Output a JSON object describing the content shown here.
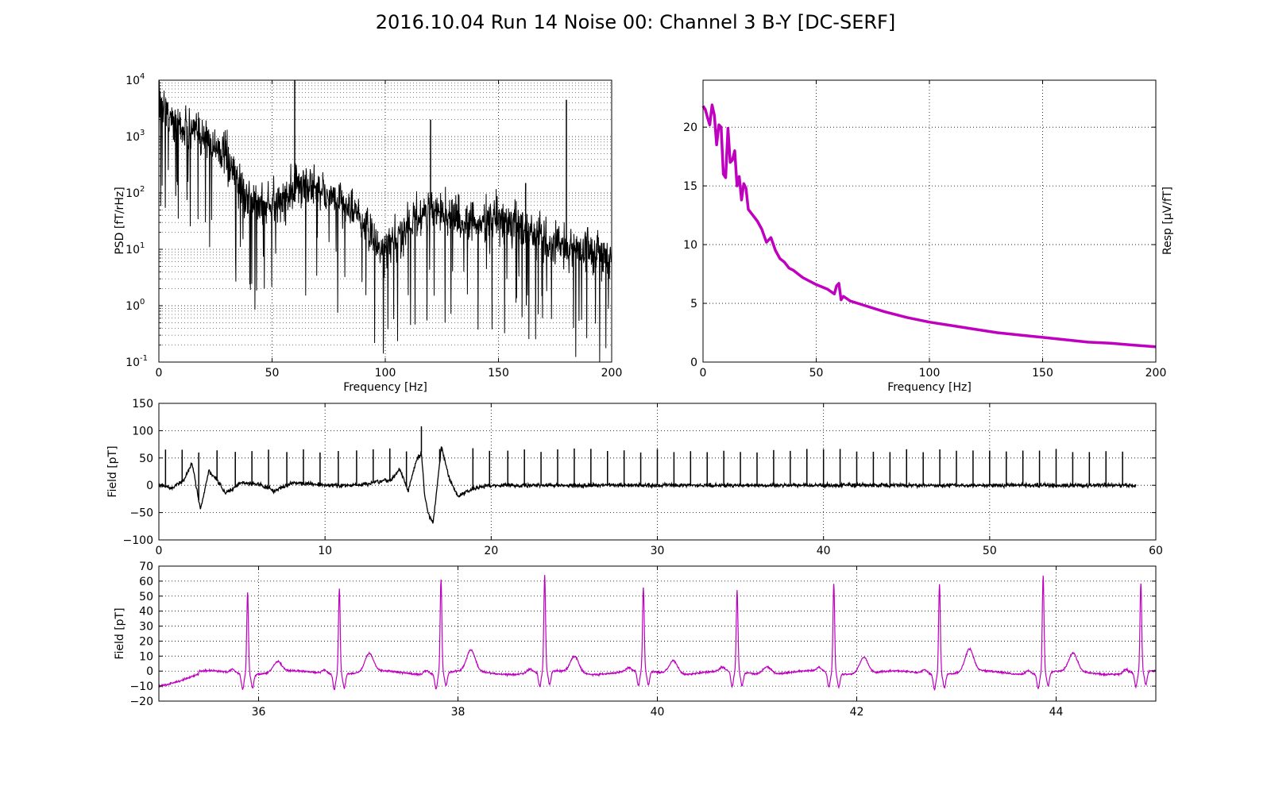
{
  "figure": {
    "title": "2016.10.04 Run 14 Noise 00: Channel 3 B-Y [DC-SERF]"
  },
  "colors": {
    "psd_line": "#000000",
    "response_line": "#bf00bf",
    "field_line": "#000000",
    "zoom_line": "#bf00bf"
  },
  "chart_data": [
    {
      "id": "psd",
      "type": "line",
      "title": "",
      "xlabel": "Frequency [Hz]",
      "ylabel": "PSD [fT/rHz]",
      "xlim": [
        0,
        200
      ],
      "ylim": [
        0.1,
        10000
      ],
      "yscale": "log",
      "grid": true,
      "xticks": [
        "0",
        "50",
        "100",
        "150",
        "200"
      ],
      "yticks": [
        {
          "base": "10",
          "exp": "-1"
        },
        {
          "base": "10",
          "exp": "0"
        },
        {
          "base": "10",
          "exp": "1"
        },
        {
          "base": "10",
          "exp": "2"
        },
        {
          "base": "10",
          "exp": "3"
        },
        {
          "base": "10",
          "exp": "4"
        }
      ],
      "series": [
        {
          "color": "#000000",
          "x": [
            0,
            2,
            5,
            10,
            15,
            20,
            25,
            30,
            35,
            40,
            45,
            50,
            55,
            60,
            65,
            70,
            75,
            80,
            85,
            90,
            95,
            100,
            105,
            110,
            115,
            120,
            125,
            130,
            135,
            140,
            145,
            150,
            155,
            160,
            165,
            170,
            175,
            180,
            185,
            190,
            195,
            200
          ],
          "y": [
            6000,
            3500,
            2000,
            1500,
            1200,
            1000,
            700,
            400,
            150,
            70,
            60,
            60,
            80,
            120,
            150,
            120,
            90,
            70,
            50,
            30,
            15,
            8,
            15,
            30,
            40,
            50,
            45,
            40,
            30,
            30,
            30,
            35,
            30,
            25,
            20,
            15,
            12,
            12,
            10,
            10,
            9,
            8
          ],
          "peaks": [
            {
              "x": 60,
              "y": 10000
            },
            {
              "x": 120,
              "y": 2000
            },
            {
              "x": 180,
              "y": 4500
            },
            {
              "x": 162,
              "y": 150
            }
          ]
        }
      ]
    },
    {
      "id": "response",
      "type": "line",
      "title": "",
      "xlabel": "Frequency [Hz]",
      "ylabel": "Resp [μV/fT]",
      "xlim": [
        0,
        200
      ],
      "ylim": [
        0,
        24
      ],
      "grid": true,
      "xticks": [
        "0",
        "50",
        "100",
        "150",
        "200"
      ],
      "yticks": [
        "0",
        "5",
        "10",
        "15",
        "20"
      ],
      "series": [
        {
          "color": "#bf00bf",
          "x": [
            0,
            1,
            2,
            3,
            4,
            5,
            6,
            7,
            8,
            9,
            10,
            11,
            12,
            13,
            14,
            15,
            16,
            17,
            18,
            19,
            20,
            22,
            24,
            26,
            28,
            30,
            32,
            34,
            36,
            38,
            40,
            42,
            44,
            46,
            48,
            50,
            55,
            58,
            59,
            60,
            61,
            62,
            65,
            70,
            75,
            80,
            90,
            100,
            110,
            120,
            130,
            140,
            150,
            160,
            170,
            180,
            190,
            200
          ],
          "y": [
            21.8,
            21.5,
            20.8,
            20.2,
            21.9,
            21.0,
            18.5,
            20.2,
            20.0,
            16.0,
            15.7,
            19.9,
            17.0,
            17.2,
            18.0,
            15.0,
            15.8,
            13.8,
            15.2,
            14.8,
            13.0,
            12.5,
            12.0,
            11.3,
            10.2,
            10.6,
            9.5,
            8.8,
            8.5,
            8.0,
            7.8,
            7.5,
            7.2,
            7.0,
            6.8,
            6.6,
            6.2,
            5.8,
            6.5,
            6.7,
            5.3,
            5.6,
            5.2,
            4.9,
            4.6,
            4.3,
            3.8,
            3.4,
            3.1,
            2.8,
            2.5,
            2.3,
            2.1,
            1.9,
            1.7,
            1.6,
            1.45,
            1.3
          ]
        }
      ]
    },
    {
      "id": "field_full",
      "type": "line",
      "title": "",
      "xlabel": "",
      "ylabel": "Field [pT]",
      "xlim": [
        0,
        60
      ],
      "ylim": [
        -100,
        150
      ],
      "grid": true,
      "xticks": [
        "0",
        "10",
        "20",
        "30",
        "40",
        "50",
        "60"
      ],
      "yticks": [
        "−100",
        "−50",
        "0",
        "50",
        "100",
        "150"
      ],
      "series": [
        {
          "color": "#000000",
          "x": [
            0,
            0.8,
            1.5,
            2.0,
            2.3,
            2.5,
            3.0,
            3.5,
            4.0,
            5.0,
            6.0,
            7.0,
            8.0,
            10.0,
            12.0,
            13.0,
            14.0,
            14.5,
            15.0,
            15.5,
            15.8,
            16.0,
            16.2,
            16.5,
            17.0,
            17.5,
            18.0,
            19.0,
            20.0,
            25.0,
            30.0,
            35.0,
            40.0,
            45.0,
            50.0,
            55.0,
            58.8
          ],
          "y": [
            0,
            -5,
            10,
            40,
            -10,
            -45,
            25,
            10,
            -15,
            5,
            2,
            -10,
            5,
            0,
            0,
            5,
            10,
            30,
            -10,
            45,
            60,
            -20,
            -50,
            -70,
            70,
            10,
            -20,
            -5,
            0,
            0,
            0,
            0,
            0,
            0,
            0,
            0,
            0
          ],
          "beat_spikes": [
            0.4,
            1.4,
            2.4,
            3.5,
            4.6,
            5.6,
            6.6,
            7.7,
            8.7,
            9.7,
            10.8,
            11.9,
            12.9,
            13.9,
            14.9,
            16.9,
            18.9,
            19.9,
            21.0,
            22.0,
            23.0,
            24.0,
            25.0,
            26.0,
            27.0,
            28.0,
            29.0,
            30.0,
            31.0,
            32.0,
            33.0,
            34.0,
            35.0,
            36.0,
            37.0,
            38.0,
            39.0,
            40.0,
            41.0,
            42.0,
            43.0,
            44.0,
            45.0,
            46.0,
            47.0,
            48.0,
            49.0,
            50.0,
            51.0,
            52.0,
            53.0,
            54.0,
            55.0,
            56.0,
            57.0,
            58.0
          ],
          "spike_peak": 65,
          "special_peaks": [
            {
              "x": 15.8,
              "y": 108
            }
          ]
        }
      ]
    },
    {
      "id": "field_zoom",
      "type": "line",
      "title": "",
      "xlabel": "",
      "ylabel": "Field [pT]",
      "xlim": [
        35,
        45
      ],
      "ylim": [
        -20,
        70
      ],
      "grid": true,
      "xticks": [
        "36",
        "38",
        "40",
        "42",
        "44"
      ],
      "xtick_values": [
        36,
        38,
        40,
        42,
        44
      ],
      "yticks": [
        "−20",
        "−10",
        "0",
        "10",
        "20",
        "30",
        "40",
        "50",
        "60",
        "70"
      ],
      "series": [
        {
          "color": "#bf00bf",
          "beats": [
            35.89,
            36.81,
            37.83,
            38.87,
            39.86,
            40.8,
            41.77,
            42.83,
            43.87,
            44.85
          ],
          "peaks": [
            55,
            57,
            62,
            64,
            56,
            54,
            59,
            60,
            65,
            59
          ],
          "t_wave": [
            7,
            12,
            14,
            11,
            9,
            5,
            11,
            15,
            12,
            8
          ]
        }
      ]
    }
  ]
}
